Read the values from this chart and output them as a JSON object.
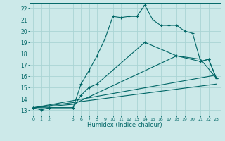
{
  "xlabel": "Humidex (Indice chaleur)",
  "bg_color": "#cce9e9",
  "line_color": "#006666",
  "xlim": [
    -0.5,
    23.5
  ],
  "ylim": [
    12.5,
    22.5
  ],
  "xticks": [
    0,
    1,
    2,
    5,
    6,
    7,
    8,
    9,
    10,
    11,
    12,
    13,
    14,
    15,
    16,
    17,
    18,
    19,
    20,
    21,
    22,
    23
  ],
  "yticks": [
    13,
    14,
    15,
    16,
    17,
    18,
    19,
    20,
    21,
    22
  ],
  "grid_color": "#aad4d4",
  "line1_x": [
    0,
    1,
    2,
    5,
    6,
    7,
    8,
    9,
    10,
    11,
    12,
    13,
    14,
    15,
    16,
    17,
    18,
    19,
    20,
    21,
    22,
    23
  ],
  "line1_y": [
    13.2,
    13.0,
    13.2,
    13.2,
    15.3,
    16.5,
    17.8,
    19.3,
    21.3,
    21.2,
    21.3,
    21.3,
    22.3,
    21.0,
    20.5,
    20.5,
    20.5,
    20.0,
    19.8,
    17.3,
    17.5,
    15.8
  ],
  "line2_x": [
    0,
    2,
    5,
    6,
    7,
    8,
    14,
    18,
    21,
    22,
    23
  ],
  "line2_y": [
    13.2,
    13.2,
    13.2,
    14.3,
    15.0,
    15.3,
    19.0,
    17.8,
    17.3,
    17.5,
    15.8
  ],
  "line3_x": [
    0,
    5,
    18,
    21,
    23
  ],
  "line3_y": [
    13.2,
    13.5,
    17.8,
    17.5,
    15.8
  ],
  "line4_x": [
    0,
    23
  ],
  "line4_y": [
    13.2,
    16.1
  ],
  "line5_x": [
    0,
    23
  ],
  "line5_y": [
    13.2,
    15.3
  ]
}
